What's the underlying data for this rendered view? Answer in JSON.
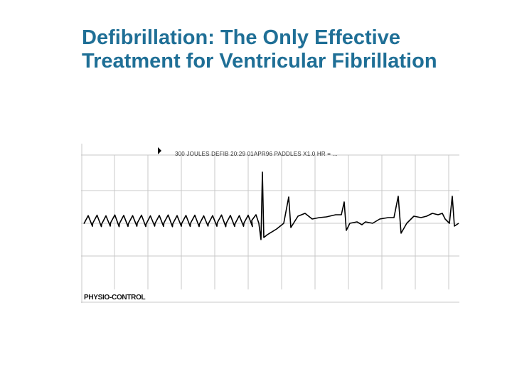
{
  "slide": {
    "title_line1": "Defibrillation: The Only Effective",
    "title_line2": "Treatment for Ventricular Fibrillation"
  },
  "ecg": {
    "header": "300 JOULES    DEFIB  20:29  01APR96   PADDLES X1.0  HR = ...",
    "brand": "PHYSIO-CONTROL",
    "trace_color": "#000000",
    "grid_color": "#c8c8c8"
  }
}
